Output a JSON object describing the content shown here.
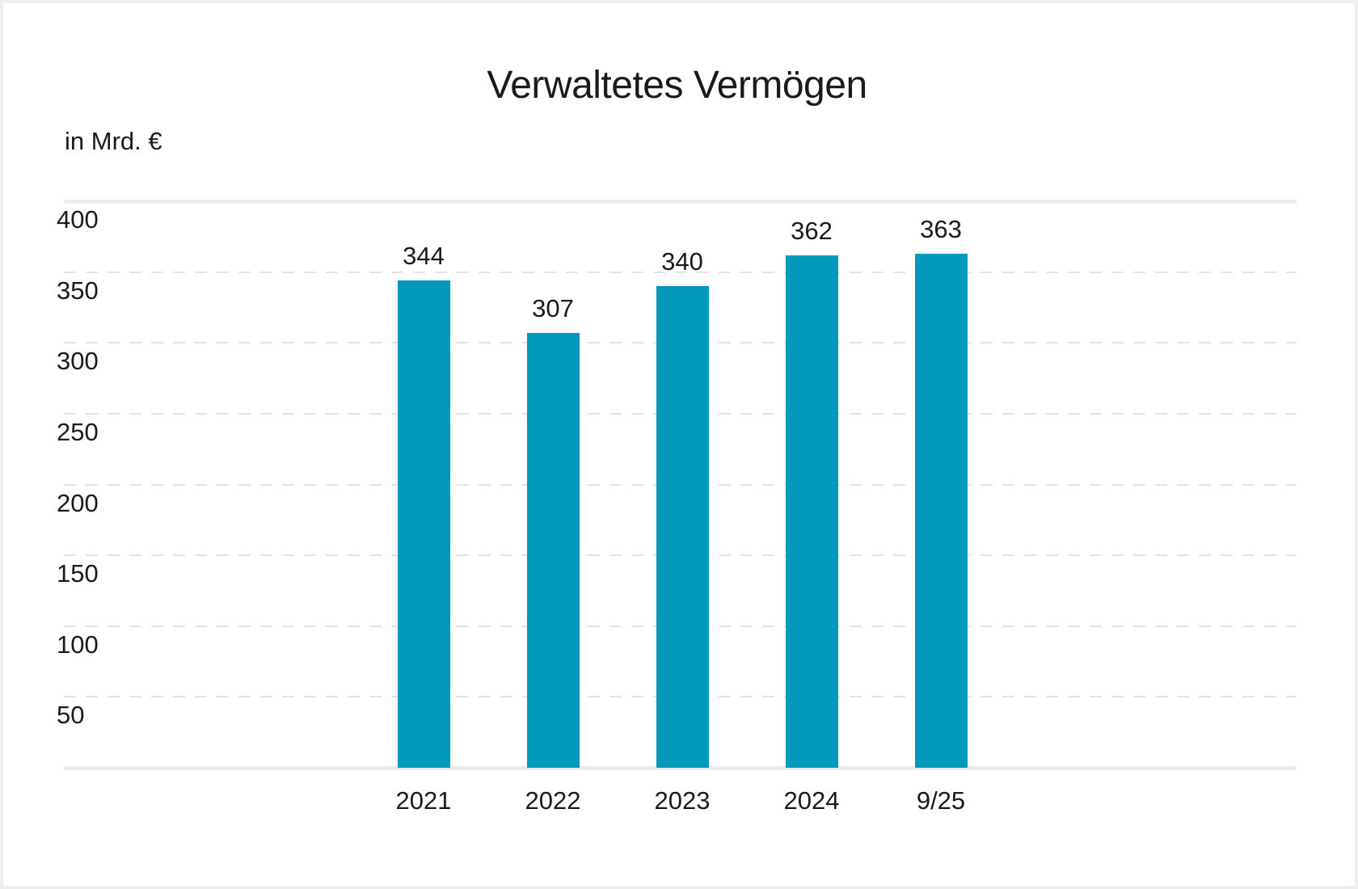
{
  "card": {
    "title": "Verwaltetes Vermögen",
    "unit_label": "in Mrd. €"
  },
  "chart_data": {
    "type": "bar",
    "title": "Verwaltetes Vermögen",
    "ylabel": "in Mrd. €",
    "xlabel": "",
    "categories": [
      "2021",
      "2022",
      "2023",
      "2024",
      "9/25"
    ],
    "values": [
      344,
      307,
      340,
      362,
      363
    ],
    "ylim": [
      0,
      400
    ],
    "yticks": [
      400,
      350,
      300,
      250,
      200,
      150,
      100,
      50
    ],
    "grid": "horizontal; top line solid, others dashed",
    "legend_position": "none",
    "colors": {
      "bar": "#0399bb",
      "text": "#1a1a1a",
      "grid_solid": "#ececee",
      "grid_dashed": "#e2e2e2",
      "axis_line": "#eaebed",
      "card_border": "#edeef0",
      "background": "#ffffff"
    }
  }
}
